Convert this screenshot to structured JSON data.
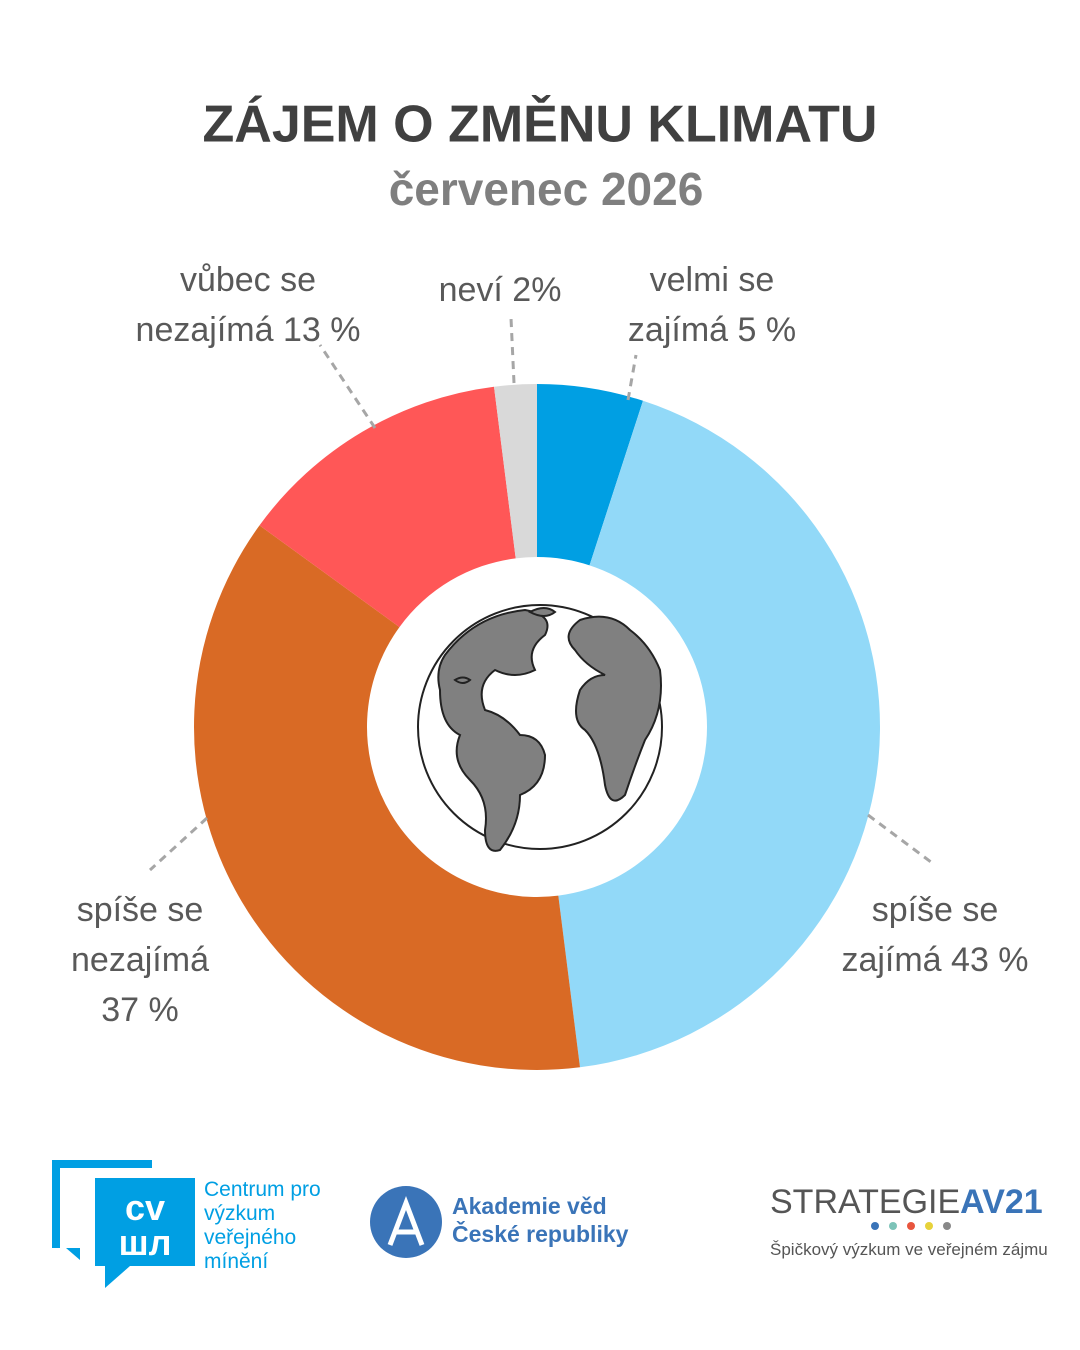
{
  "chart_data": {
    "type": "pie",
    "title": "ZÁJEM O ZMĚNU KLIMATU",
    "subtitle": "červenec 2026",
    "categories": [
      "velmi se zajímá",
      "spíše se zajímá",
      "spíše se nezajímá",
      "vůbec se nezajímá",
      "neví"
    ],
    "values": [
      5,
      43,
      37,
      13,
      2
    ],
    "value_labels": [
      "5 %",
      "43 %",
      "37 %",
      "13 %",
      "2%"
    ],
    "colors": [
      "#009fe3",
      "#92d9f8",
      "#d96a25",
      "#ff5757",
      "#d9d9d9"
    ]
  },
  "footer": {
    "cvvm": "Centrum pro výzkum veřejného mínění",
    "av": "Akademie věd České republiky",
    "strategie": "STRATEGIE",
    "av21": "AV21",
    "strategie_sub": "Špičkový výzkum ve veřejném zájmu"
  }
}
